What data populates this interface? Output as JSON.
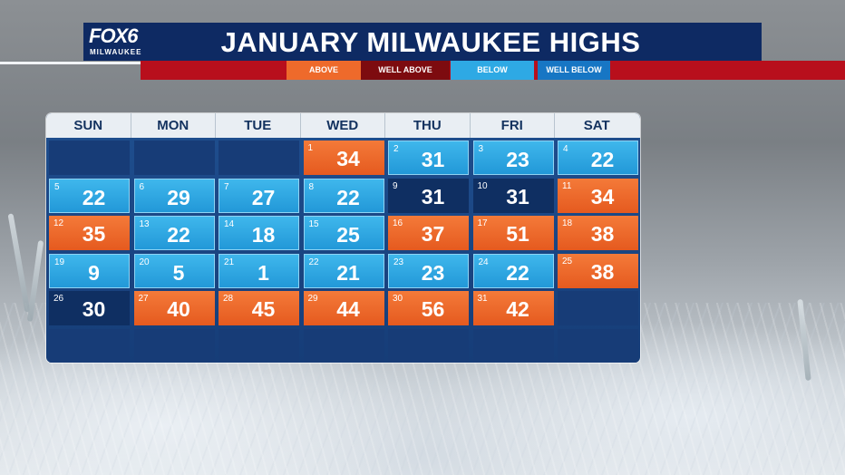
{
  "brand": {
    "logo_main": "FOX6",
    "logo_sub": "MILWAUKEE"
  },
  "title": "JANUARY MILWAUKEE HIGHS",
  "legend": {
    "above": "ABOVE",
    "well_above": "WELL ABOVE",
    "below": "BELOW",
    "well_below": "WELL BELOW"
  },
  "colors": {
    "above": "#ee6a2b",
    "well_above": "#7d0b0f",
    "below": "#2ea9e4",
    "well_below": "#0f2f62",
    "header": "#0e2a63",
    "bar": "#b80f1c"
  },
  "weekdays": [
    "SUN",
    "MON",
    "TUE",
    "WED",
    "THU",
    "FRI",
    "SAT"
  ],
  "weeks": [
    [
      null,
      null,
      null,
      {
        "day": "1",
        "temp": "34",
        "cat": "above"
      },
      {
        "day": "2",
        "temp": "31",
        "cat": "below"
      },
      {
        "day": "3",
        "temp": "23",
        "cat": "below"
      },
      {
        "day": "4",
        "temp": "22",
        "cat": "below"
      }
    ],
    [
      {
        "day": "5",
        "temp": "22",
        "cat": "below"
      },
      {
        "day": "6",
        "temp": "29",
        "cat": "below"
      },
      {
        "day": "7",
        "temp": "27",
        "cat": "below"
      },
      {
        "day": "8",
        "temp": "22",
        "cat": "below"
      },
      {
        "day": "9",
        "temp": "31",
        "cat": "wbelow"
      },
      {
        "day": "10",
        "temp": "31",
        "cat": "wbelow"
      },
      {
        "day": "11",
        "temp": "34",
        "cat": "above"
      }
    ],
    [
      {
        "day": "12",
        "temp": "35",
        "cat": "above"
      },
      {
        "day": "13",
        "temp": "22",
        "cat": "below"
      },
      {
        "day": "14",
        "temp": "18",
        "cat": "below"
      },
      {
        "day": "15",
        "temp": "25",
        "cat": "below"
      },
      {
        "day": "16",
        "temp": "37",
        "cat": "above"
      },
      {
        "day": "17",
        "temp": "51",
        "cat": "above"
      },
      {
        "day": "18",
        "temp": "38",
        "cat": "above"
      }
    ],
    [
      {
        "day": "19",
        "temp": "9",
        "cat": "below"
      },
      {
        "day": "20",
        "temp": "5",
        "cat": "below"
      },
      {
        "day": "21",
        "temp": "1",
        "cat": "below"
      },
      {
        "day": "22",
        "temp": "21",
        "cat": "below"
      },
      {
        "day": "23",
        "temp": "23",
        "cat": "below"
      },
      {
        "day": "24",
        "temp": "22",
        "cat": "below"
      },
      {
        "day": "25",
        "temp": "38",
        "cat": "above"
      }
    ],
    [
      {
        "day": "26",
        "temp": "30",
        "cat": "wbelow"
      },
      {
        "day": "27",
        "temp": "40",
        "cat": "above"
      },
      {
        "day": "28",
        "temp": "45",
        "cat": "above"
      },
      {
        "day": "29",
        "temp": "44",
        "cat": "above"
      },
      {
        "day": "30",
        "temp": "56",
        "cat": "above"
      },
      {
        "day": "31",
        "temp": "42",
        "cat": "above"
      },
      null
    ],
    [
      null,
      null,
      null,
      null,
      null,
      null,
      null
    ]
  ]
}
